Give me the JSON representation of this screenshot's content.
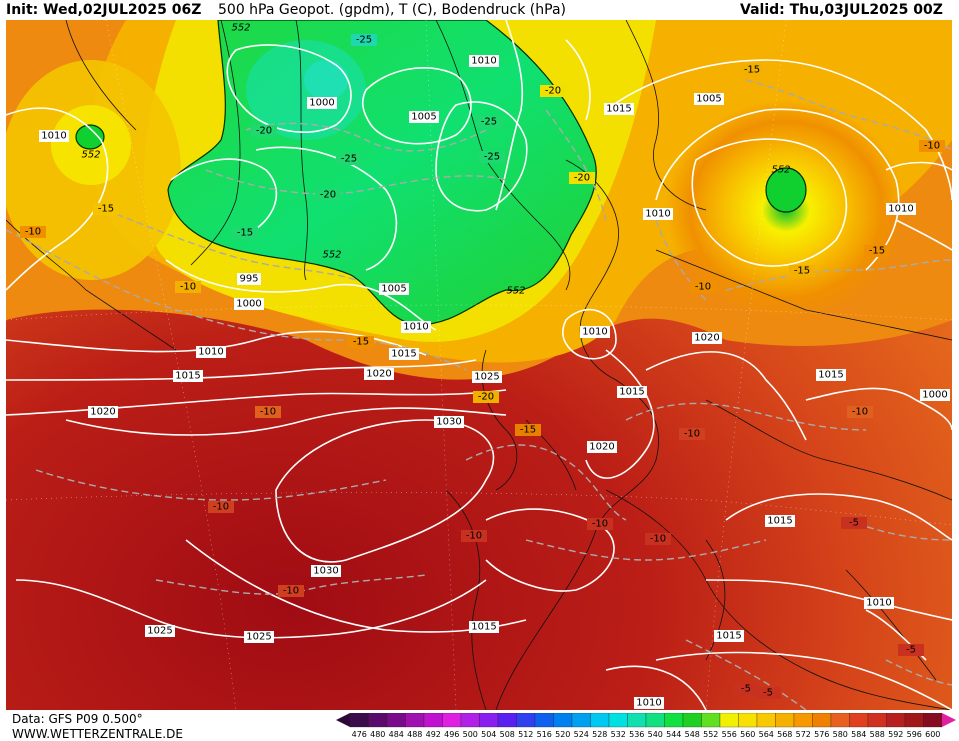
{
  "header": {
    "init": "Init: Wed,02JUL2025 06Z",
    "title": "500 hPa Geopot. (gpdm), T (C), Bodendruck (hPa)",
    "valid": "Valid: Thu,03JUL2025 00Z"
  },
  "footer": {
    "data_source": "Data: GFS P09 0.500°",
    "website": "WWW.WETTERZENTRALE.DE"
  },
  "colorbar": {
    "labels": [
      "476",
      "480",
      "484",
      "488",
      "492",
      "496",
      "500",
      "504",
      "508",
      "512",
      "516",
      "520",
      "524",
      "528",
      "532",
      "536",
      "540",
      "544",
      "548",
      "552",
      "556",
      "560",
      "564",
      "568",
      "572",
      "576",
      "580",
      "584",
      "588",
      "592",
      "596",
      "600"
    ],
    "colors": [
      "#3a0a4a",
      "#5a0a6a",
      "#7a0a8a",
      "#a010b0",
      "#c010d0",
      "#e020e0",
      "#b020e8",
      "#8a20f0",
      "#5a20f0",
      "#3040f0",
      "#1060f0",
      "#0080f0",
      "#00a0f0",
      "#00c8f0",
      "#00e0e0",
      "#10e0b0",
      "#10e080",
      "#10e040",
      "#20d020",
      "#60e020",
      "#f0f000",
      "#f8e000",
      "#f8c800",
      "#f8b000",
      "#f89800",
      "#f08000",
      "#e86020",
      "#e04020",
      "#d03020",
      "#b82020",
      "#a01818",
      "#880c20"
    ]
  },
  "map_labels": {
    "isobars": [
      "1010",
      "1000",
      "1005",
      "1010",
      "1015",
      "1005",
      "1010",
      "995",
      "1000",
      "1010",
      "1005",
      "1010",
      "1015",
      "1010",
      "1020",
      "1025",
      "1030",
      "1020",
      "1015",
      "1015",
      "1020",
      "1030",
      "1020",
      "1015",
      "1010",
      "1025",
      "1025",
      "1015",
      "1015",
      "1010",
      "1010",
      "1000",
      "1015"
    ],
    "temps": [
      "-25",
      "-20",
      "-25",
      "-20",
      "-25",
      "-25",
      "-20",
      "-20",
      "-15",
      "-15",
      "-15",
      "-10",
      "-10",
      "-15",
      "-20",
      "-15",
      "-10",
      "-10",
      "-10",
      "-10",
      "-10",
      "-10",
      "-15",
      "-15",
      "-10",
      "-5",
      "-5",
      "-5",
      "-5",
      "-10",
      "-10",
      "-10"
    ],
    "geopot": [
      "552",
      "552",
      "552",
      "552",
      "552"
    ]
  }
}
